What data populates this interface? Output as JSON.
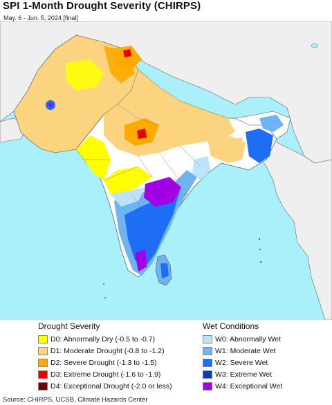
{
  "title": "SPI 1-Month Drought Severity (CHIRPS)",
  "subtitle": "May. 6 - Jun. 5, 2024 [final]",
  "legend": {
    "drought_heading": "Drought Severity",
    "wet_heading": "Wet Conditions",
    "drought_items": [
      {
        "label": "D0: Abnormally Dry (-0.5 to -0.7)",
        "color": "#ffff00"
      },
      {
        "label": "D1: Moderate Drought (-0.8 to -1.2)",
        "color": "#fcd37f"
      },
      {
        "label": "D2: Severe Drought (-1.3 to -1.5)",
        "color": "#ffaa00"
      },
      {
        "label": "D3: Extreme Drought (-1.6 to -1.9)",
        "color": "#e60000"
      },
      {
        "label": "D4: Exceptional Drought (-2.0 or less)",
        "color": "#730000"
      }
    ],
    "wet_items": [
      {
        "label": "W0: Abnormally Wet",
        "color": "#bde4fc"
      },
      {
        "label": "W1: Moderate Wet",
        "color": "#6fb4f2"
      },
      {
        "label": "W2: Severe Wet",
        "color": "#1e6ef5"
      },
      {
        "label": "W3: Extreme Wet",
        "color": "#0b3fa8"
      },
      {
        "label": "W4: Exceptional Wet",
        "color": "#a100e6"
      }
    ]
  },
  "source": "Source: CHIRPS, UCSB, Climate Hazards Center",
  "colors": {
    "ocean": "#aaf0fa",
    "land_outside": "#efefef",
    "land_normal": "#ffffff",
    "boundary": "#555555"
  }
}
